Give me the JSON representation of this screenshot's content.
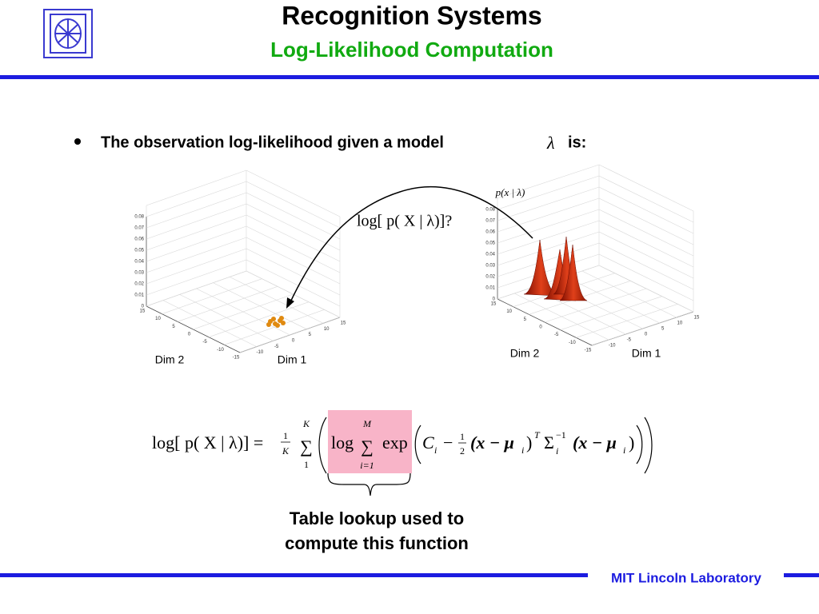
{
  "header": {
    "title": "Recognition Systems",
    "subtitle": "Log-Likelihood Computation"
  },
  "bullet": {
    "text": "The observation log-likelihood given a model",
    "symbol": "λ",
    "suffix": "is:"
  },
  "plots": [
    {
      "zticks": [
        0.08,
        0.07,
        0.06,
        0.05,
        0.04,
        0.03,
        0.02,
        0.01,
        0
      ],
      "dim2_ticks": [
        15,
        10,
        5,
        0,
        -5,
        -10,
        -15
      ],
      "dim1_ticks": [
        -10,
        -5,
        0,
        5,
        10,
        15
      ],
      "dim2_label": "Dim 2",
      "dim1_label": "Dim 1"
    },
    {
      "label": "p(x | λ)",
      "zticks": [
        0.08,
        0.07,
        0.06,
        0.05,
        0.04,
        0.03,
        0.02,
        0.01,
        0
      ],
      "dim2_ticks": [
        15,
        10,
        5,
        0,
        -5,
        -10,
        -15
      ],
      "dim1_ticks": [
        -10,
        -5,
        0,
        5,
        10,
        15
      ],
      "dim2_label": "Dim 2",
      "dim1_label": "Dim 1"
    }
  ],
  "arrow_label": "log[ p( X | λ)]?",
  "formula": {
    "lhs": "log[ p( X | λ)] =",
    "frac_num": "1",
    "frac_den": "K",
    "sum": "∑",
    "sum_upper": "K",
    "sum_lower": "1",
    "log": "log",
    "inner_sum": "∑",
    "inner_upper": "M",
    "inner_lower": "i=1",
    "exp": "exp",
    "c": "C",
    "c_sub": "i",
    "minus": "−",
    "half_num": "1",
    "half_den": "2",
    "diff": "(x − μ",
    "diff_sub": "i",
    "close": ")",
    "t": "T",
    "sigma": "Σ",
    "sigma_sup": "−1",
    "sigma_sub": "i",
    "diff2": "(x − μ",
    "diff2_sub": "i",
    "close2": ")"
  },
  "callout": {
    "lines": [
      "Table lookup used to",
      "compute this function"
    ]
  },
  "footer": {
    "text": "MIT Lincoln Laboratory"
  }
}
